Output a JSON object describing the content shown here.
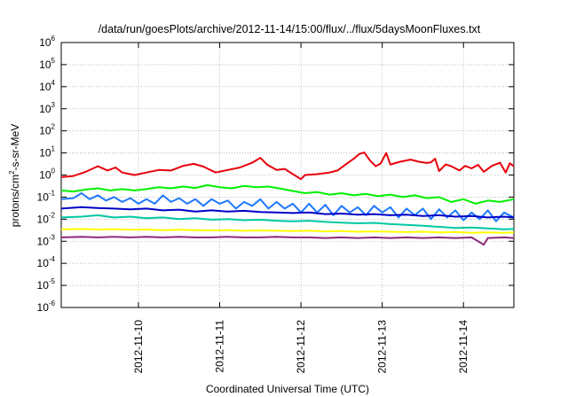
{
  "chart_data": {
    "type": "line",
    "title": "/data/run/goesPlots/archive/2012-11-14/15:00/flux/../flux/5daysMoonFluxes.txt",
    "xlabel": "Coordinated Universal Time (UTC)",
    "ylabel": {
      "prefix": "protons/cm",
      "superscript": "2",
      "suffix": "-s-sr-MeV"
    },
    "yscale": "log",
    "ylim_exponents": [
      -6,
      6
    ],
    "y_tick_base": "10",
    "y_ticks": [
      "-6",
      "-5",
      "-4",
      "-3",
      "-2",
      "-1",
      "0",
      "1",
      "2",
      "3",
      "4",
      "5",
      "6"
    ],
    "x_ticks": [
      "2012-11-10",
      "2012-11-11",
      "2012-11-12",
      "2012-11-13",
      "2012-11-14"
    ],
    "x_range_days": [
      9.05,
      14.62
    ],
    "grid": true,
    "series": [
      {
        "color": "#e8000b",
        "points": [
          [
            9.05,
            0.8
          ],
          [
            9.2,
            0.9
          ],
          [
            9.35,
            1.4
          ],
          [
            9.5,
            2.5
          ],
          [
            9.62,
            1.6
          ],
          [
            9.72,
            2.2
          ],
          [
            9.8,
            1.3
          ],
          [
            9.95,
            1.0
          ],
          [
            10.1,
            1.3
          ],
          [
            10.25,
            1.7
          ],
          [
            10.4,
            1.6
          ],
          [
            10.55,
            2.6
          ],
          [
            10.68,
            3.2
          ],
          [
            10.8,
            2.4
          ],
          [
            10.95,
            1.3
          ],
          [
            11.1,
            1.7
          ],
          [
            11.25,
            2.2
          ],
          [
            11.4,
            3.6
          ],
          [
            11.5,
            6.0
          ],
          [
            11.58,
            3.0
          ],
          [
            11.7,
            1.7
          ],
          [
            11.8,
            1.9
          ],
          [
            11.9,
            1.1
          ],
          [
            12.0,
            0.65
          ],
          [
            12.05,
            1.0
          ],
          [
            12.2,
            1.1
          ],
          [
            12.35,
            1.3
          ],
          [
            12.45,
            1.6
          ],
          [
            12.55,
            3.0
          ],
          [
            12.65,
            5.5
          ],
          [
            12.72,
            9.0
          ],
          [
            12.78,
            10.5
          ],
          [
            12.85,
            4.5
          ],
          [
            12.92,
            2.5
          ],
          [
            12.98,
            3.3
          ],
          [
            13.05,
            10.0
          ],
          [
            13.1,
            3.0
          ],
          [
            13.22,
            4.0
          ],
          [
            13.35,
            5.0
          ],
          [
            13.45,
            4.0
          ],
          [
            13.55,
            3.5
          ],
          [
            13.6,
            3.8
          ],
          [
            13.65,
            5.5
          ],
          [
            13.7,
            1.5
          ],
          [
            13.78,
            3.0
          ],
          [
            13.85,
            2.5
          ],
          [
            13.95,
            1.6
          ],
          [
            14.02,
            2.6
          ],
          [
            14.1,
            2.0
          ],
          [
            14.18,
            2.9
          ],
          [
            14.25,
            1.4
          ],
          [
            14.35,
            2.6
          ],
          [
            14.45,
            3.6
          ],
          [
            14.52,
            1.3
          ],
          [
            14.57,
            3.4
          ],
          [
            14.62,
            2.5
          ]
        ]
      },
      {
        "color": "#00f000",
        "points": [
          [
            9.05,
            0.2
          ],
          [
            9.2,
            0.18
          ],
          [
            9.35,
            0.22
          ],
          [
            9.5,
            0.25
          ],
          [
            9.65,
            0.2
          ],
          [
            9.8,
            0.23
          ],
          [
            9.95,
            0.2
          ],
          [
            10.1,
            0.23
          ],
          [
            10.25,
            0.28
          ],
          [
            10.4,
            0.25
          ],
          [
            10.55,
            0.3
          ],
          [
            10.7,
            0.26
          ],
          [
            10.85,
            0.35
          ],
          [
            11.0,
            0.28
          ],
          [
            11.15,
            0.25
          ],
          [
            11.3,
            0.32
          ],
          [
            11.45,
            0.28
          ],
          [
            11.6,
            0.3
          ],
          [
            11.75,
            0.24
          ],
          [
            11.9,
            0.19
          ],
          [
            12.05,
            0.15
          ],
          [
            12.2,
            0.17
          ],
          [
            12.35,
            0.13
          ],
          [
            12.5,
            0.15
          ],
          [
            12.65,
            0.12
          ],
          [
            12.8,
            0.14
          ],
          [
            12.95,
            0.11
          ],
          [
            13.1,
            0.13
          ],
          [
            13.25,
            0.1
          ],
          [
            13.4,
            0.12
          ],
          [
            13.55,
            0.09
          ],
          [
            13.7,
            0.1
          ],
          [
            13.85,
            0.06
          ],
          [
            14.0,
            0.08
          ],
          [
            14.15,
            0.05
          ],
          [
            14.3,
            0.07
          ],
          [
            14.45,
            0.06
          ],
          [
            14.62,
            0.08
          ]
        ]
      },
      {
        "color": "#1e78ff",
        "points": [
          [
            9.05,
            0.08
          ],
          [
            9.2,
            0.09
          ],
          [
            9.3,
            0.15
          ],
          [
            9.4,
            0.08
          ],
          [
            9.5,
            0.12
          ],
          [
            9.6,
            0.07
          ],
          [
            9.7,
            0.1
          ],
          [
            9.8,
            0.06
          ],
          [
            9.9,
            0.09
          ],
          [
            10.0,
            0.05
          ],
          [
            10.1,
            0.08
          ],
          [
            10.2,
            0.05
          ],
          [
            10.3,
            0.12
          ],
          [
            10.4,
            0.06
          ],
          [
            10.5,
            0.09
          ],
          [
            10.6,
            0.05
          ],
          [
            10.7,
            0.08
          ],
          [
            10.8,
            0.04
          ],
          [
            10.9,
            0.08
          ],
          [
            11.0,
            0.05
          ],
          [
            11.1,
            0.07
          ],
          [
            11.2,
            0.03
          ],
          [
            11.3,
            0.06
          ],
          [
            11.4,
            0.04
          ],
          [
            11.5,
            0.08
          ],
          [
            11.6,
            0.03
          ],
          [
            11.7,
            0.06
          ],
          [
            11.8,
            0.03
          ],
          [
            11.9,
            0.05
          ],
          [
            12.0,
            0.02
          ],
          [
            12.1,
            0.05
          ],
          [
            12.2,
            0.02
          ],
          [
            12.3,
            0.045
          ],
          [
            12.4,
            0.015
          ],
          [
            12.5,
            0.04
          ],
          [
            12.6,
            0.02
          ],
          [
            12.7,
            0.035
          ],
          [
            12.8,
            0.015
          ],
          [
            12.9,
            0.04
          ],
          [
            13.0,
            0.02
          ],
          [
            13.1,
            0.035
          ],
          [
            13.2,
            0.012
          ],
          [
            13.3,
            0.03
          ],
          [
            13.4,
            0.015
          ],
          [
            13.5,
            0.03
          ],
          [
            13.6,
            0.01
          ],
          [
            13.7,
            0.028
          ],
          [
            13.8,
            0.012
          ],
          [
            13.9,
            0.025
          ],
          [
            14.0,
            0.009
          ],
          [
            14.1,
            0.02
          ],
          [
            14.2,
            0.01
          ],
          [
            14.3,
            0.025
          ],
          [
            14.4,
            0.008
          ],
          [
            14.5,
            0.02
          ],
          [
            14.62,
            0.012
          ]
        ]
      },
      {
        "color": "#0000c8",
        "points": [
          [
            9.05,
            0.03
          ],
          [
            9.3,
            0.035
          ],
          [
            9.5,
            0.032
          ],
          [
            9.7,
            0.03
          ],
          [
            9.9,
            0.028
          ],
          [
            10.1,
            0.03
          ],
          [
            10.3,
            0.025
          ],
          [
            10.5,
            0.027
          ],
          [
            10.7,
            0.022
          ],
          [
            10.9,
            0.025
          ],
          [
            11.1,
            0.022
          ],
          [
            11.3,
            0.024
          ],
          [
            11.5,
            0.021
          ],
          [
            11.7,
            0.02
          ],
          [
            11.9,
            0.019
          ],
          [
            12.1,
            0.02
          ],
          [
            12.3,
            0.017
          ],
          [
            12.5,
            0.018
          ],
          [
            12.7,
            0.016
          ],
          [
            12.9,
            0.017
          ],
          [
            13.1,
            0.015
          ],
          [
            13.3,
            0.016
          ],
          [
            13.5,
            0.014
          ],
          [
            13.7,
            0.015
          ],
          [
            13.9,
            0.013
          ],
          [
            14.1,
            0.014
          ],
          [
            14.3,
            0.012
          ],
          [
            14.5,
            0.013
          ],
          [
            14.62,
            0.012
          ]
        ]
      },
      {
        "color": "#00c8a0",
        "points": [
          [
            9.05,
            0.012
          ],
          [
            9.3,
            0.013
          ],
          [
            9.5,
            0.015
          ],
          [
            9.7,
            0.012
          ],
          [
            9.9,
            0.013
          ],
          [
            10.1,
            0.011
          ],
          [
            10.3,
            0.012
          ],
          [
            10.5,
            0.01
          ],
          [
            10.7,
            0.011
          ],
          [
            10.9,
            0.0095
          ],
          [
            11.1,
            0.01
          ],
          [
            11.3,
            0.009
          ],
          [
            11.5,
            0.0095
          ],
          [
            11.7,
            0.0085
          ],
          [
            11.9,
            0.008
          ],
          [
            12.1,
            0.0085
          ],
          [
            12.3,
            0.0075
          ],
          [
            12.5,
            0.007
          ],
          [
            12.7,
            0.0065
          ],
          [
            12.9,
            0.0068
          ],
          [
            13.1,
            0.006
          ],
          [
            13.3,
            0.0055
          ],
          [
            13.5,
            0.005
          ],
          [
            13.7,
            0.0045
          ],
          [
            13.9,
            0.004
          ],
          [
            14.1,
            0.0042
          ],
          [
            14.3,
            0.0038
          ],
          [
            14.5,
            0.0035
          ],
          [
            14.62,
            0.0036
          ]
        ]
      },
      {
        "color": "#ffff00",
        "points": [
          [
            9.05,
            0.0035
          ],
          [
            9.3,
            0.0036
          ],
          [
            9.5,
            0.0034
          ],
          [
            9.7,
            0.0035
          ],
          [
            9.9,
            0.0033
          ],
          [
            10.1,
            0.0034
          ],
          [
            10.3,
            0.0032
          ],
          [
            10.5,
            0.0033
          ],
          [
            10.7,
            0.0032
          ],
          [
            10.9,
            0.0031
          ],
          [
            11.1,
            0.0032
          ],
          [
            11.3,
            0.003
          ],
          [
            11.5,
            0.0031
          ],
          [
            11.7,
            0.003
          ],
          [
            11.9,
            0.0029
          ],
          [
            12.1,
            0.003
          ],
          [
            12.3,
            0.0028
          ],
          [
            12.5,
            0.0029
          ],
          [
            12.7,
            0.0027
          ],
          [
            12.9,
            0.0028
          ],
          [
            13.1,
            0.0027
          ],
          [
            13.3,
            0.0026
          ],
          [
            13.5,
            0.0027
          ],
          [
            13.7,
            0.0025
          ],
          [
            13.9,
            0.0026
          ],
          [
            14.1,
            0.0024
          ],
          [
            14.3,
            0.0025
          ],
          [
            14.5,
            0.0024
          ],
          [
            14.62,
            0.0025
          ]
        ]
      },
      {
        "color": "#8c2a78",
        "points": [
          [
            9.05,
            0.0015
          ],
          [
            9.3,
            0.0016
          ],
          [
            9.5,
            0.0015
          ],
          [
            9.7,
            0.0016
          ],
          [
            9.9,
            0.0015
          ],
          [
            10.1,
            0.0016
          ],
          [
            10.3,
            0.0015
          ],
          [
            10.5,
            0.0016
          ],
          [
            10.7,
            0.0015
          ],
          [
            10.9,
            0.0015
          ],
          [
            11.1,
            0.0016
          ],
          [
            11.3,
            0.0015
          ],
          [
            11.5,
            0.0015
          ],
          [
            11.7,
            0.0016
          ],
          [
            11.9,
            0.0015
          ],
          [
            12.1,
            0.0015
          ],
          [
            12.3,
            0.0014
          ],
          [
            12.5,
            0.0015
          ],
          [
            12.7,
            0.0014
          ],
          [
            12.9,
            0.0015
          ],
          [
            13.1,
            0.0014
          ],
          [
            13.3,
            0.0015
          ],
          [
            13.5,
            0.0014
          ],
          [
            13.7,
            0.0015
          ],
          [
            13.9,
            0.0014
          ],
          [
            14.1,
            0.0015
          ],
          [
            14.25,
            0.0007
          ],
          [
            14.3,
            0.0014
          ],
          [
            14.5,
            0.0015
          ],
          [
            14.62,
            0.0014
          ]
        ]
      }
    ]
  }
}
